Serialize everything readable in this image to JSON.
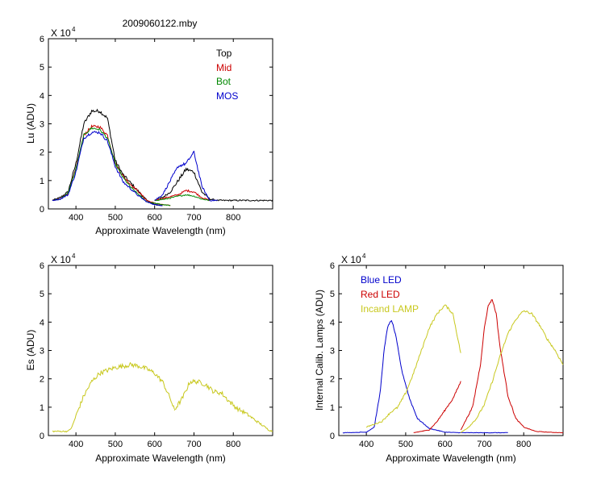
{
  "figure_title": "2009060122.mby",
  "chart_data": [
    {
      "type": "line",
      "xlabel": "Approximate Wavelength (nm)",
      "ylabel": "Lu (ADU)",
      "multiplier_label": "X 10",
      "multiplier_exp": "4",
      "xlim": [
        330,
        900
      ],
      "ylim": [
        0,
        6
      ],
      "xticks": [
        400,
        500,
        600,
        700,
        800
      ],
      "yticks": [
        0,
        1,
        2,
        3,
        4,
        5,
        6
      ],
      "legend_position": "top-right",
      "series": [
        {
          "name": "Top",
          "color": "#000000",
          "noise": 0.06,
          "segments": [
            {
              "x": [
                340,
                360,
                380,
                400,
                420,
                440,
                460,
                480,
                500,
                520,
                540,
                560,
                580,
                600,
                620
              ],
              "y": [
                0.3,
                0.4,
                0.6,
                1.6,
                3.0,
                3.45,
                3.45,
                3.2,
                1.7,
                1.2,
                0.9,
                0.6,
                0.3,
                0.15,
                0.12
              ]
            },
            {
              "x": [
                600,
                620,
                640,
                660,
                680,
                700,
                720,
                740,
                760,
                800,
                850,
                900
              ],
              "y": [
                0.3,
                0.4,
                0.6,
                1.0,
                1.4,
                1.3,
                0.6,
                0.35,
                0.3,
                0.3,
                0.3,
                0.3
              ]
            }
          ]
        },
        {
          "name": "Mid",
          "color": "#cc0000",
          "noise": 0.05,
          "segments": [
            {
              "x": [
                340,
                360,
                380,
                400,
                420,
                440,
                460,
                480,
                500,
                520,
                540,
                560,
                580,
                600,
                620,
                640
              ],
              "y": [
                0.3,
                0.35,
                0.55,
                1.4,
                2.6,
                2.9,
                2.9,
                2.6,
                1.6,
                1.15,
                0.85,
                0.6,
                0.3,
                0.2,
                0.15,
                0.12
              ]
            },
            {
              "x": [
                600,
                630,
                660,
                680,
                700,
                720,
                740
              ],
              "y": [
                0.3,
                0.4,
                0.5,
                0.65,
                0.6,
                0.4,
                0.3
              ]
            }
          ]
        },
        {
          "name": "Bot",
          "color": "#008800",
          "noise": 0.04,
          "segments": [
            {
              "x": [
                340,
                360,
                380,
                400,
                420,
                440,
                460,
                480,
                500,
                520,
                540,
                560,
                580,
                600,
                620,
                640
              ],
              "y": [
                0.3,
                0.35,
                0.55,
                1.4,
                2.6,
                2.85,
                2.8,
                2.5,
                1.6,
                1.1,
                0.75,
                0.5,
                0.25,
                0.2,
                0.15,
                0.12
              ]
            },
            {
              "x": [
                600,
                630,
                660,
                680,
                700,
                720,
                740
              ],
              "y": [
                0.3,
                0.35,
                0.45,
                0.5,
                0.45,
                0.35,
                0.3
              ]
            }
          ]
        },
        {
          "name": "MOS",
          "color": "#0000cc",
          "noise": 0.05,
          "segments": [
            {
              "x": [
                340,
                360,
                380,
                400,
                420,
                440,
                460,
                480,
                500,
                520,
                540,
                560,
                580,
                600,
                620
              ],
              "y": [
                0.3,
                0.35,
                0.5,
                1.3,
                2.5,
                2.7,
                2.7,
                2.4,
                1.5,
                0.95,
                0.7,
                0.45,
                0.25,
                0.15,
                0.12
              ]
            },
            {
              "x": [
                600,
                620,
                640,
                660,
                680,
                700,
                710,
                720,
                740,
                760
              ],
              "y": [
                0.3,
                0.5,
                1.0,
                1.5,
                1.6,
                2.0,
                1.4,
                0.8,
                0.3,
                0.3
              ]
            }
          ]
        }
      ]
    },
    {
      "type": "line",
      "xlabel": "Approximate Wavelength (nm)",
      "ylabel": "Es (ADU)",
      "multiplier_label": "X 10",
      "multiplier_exp": "4",
      "xlim": [
        330,
        900
      ],
      "ylim": [
        0,
        6
      ],
      "xticks": [
        400,
        500,
        600,
        700,
        800
      ],
      "yticks": [
        0,
        1,
        2,
        3,
        4,
        5,
        6
      ],
      "series": [
        {
          "name": "",
          "color": "#c8c81e",
          "noise": 0.08,
          "segments": [
            {
              "x": [
                340,
                380,
                390,
                400,
                420,
                440,
                460,
                480,
                500,
                520,
                540,
                560,
                580,
                600,
                620,
                640,
                650
              ],
              "y": [
                0.15,
                0.15,
                0.3,
                0.7,
                1.4,
                1.9,
                2.2,
                2.3,
                2.4,
                2.45,
                2.5,
                2.45,
                2.35,
                2.2,
                1.9,
                1.3,
                0.9
              ]
            },
            {
              "x": [
                650,
                670,
                690,
                710,
                730,
                750,
                770,
                790,
                810,
                830,
                850,
                870,
                890,
                900
              ],
              "y": [
                0.9,
                1.3,
                1.9,
                1.9,
                1.8,
                1.55,
                1.5,
                1.2,
                0.95,
                0.8,
                0.6,
                0.4,
                0.2,
                0.15
              ]
            }
          ]
        }
      ]
    },
    {
      "type": "line",
      "xlabel": "Approximate Wavelength (nm)",
      "ylabel": "Internal Calib. Lamps (ADU)",
      "multiplier_label": "X 10",
      "multiplier_exp": "4",
      "xlim": [
        330,
        900
      ],
      "ylim": [
        0,
        6
      ],
      "xticks": [
        400,
        500,
        600,
        700,
        800
      ],
      "yticks": [
        0,
        1,
        2,
        3,
        4,
        5,
        6
      ],
      "legend_position": "top-left",
      "series": [
        {
          "name": "Blue LED",
          "color": "#0000cc",
          "noise": 0.03,
          "segments": [
            {
              "x": [
                340,
                400,
                420,
                435,
                445,
                455,
                465,
                475,
                490,
                510,
                530,
                560,
                600,
                640,
                680,
                720,
                760
              ],
              "y": [
                0.1,
                0.12,
                0.3,
                1.5,
                3.0,
                3.9,
                4.05,
                3.5,
                2.3,
                1.3,
                0.6,
                0.25,
                0.12,
                0.1,
                0.1,
                0.1,
                0.1
              ]
            }
          ]
        },
        {
          "name": "Red LED",
          "color": "#cc0000",
          "noise": 0.03,
          "segments": [
            {
              "x": [
                520,
                560,
                580,
                600,
                620,
                640
              ],
              "y": [
                0.1,
                0.2,
                0.5,
                0.9,
                1.3,
                1.9
              ]
            },
            {
              "x": [
                640,
                670,
                690,
                700,
                710,
                720,
                730,
                740,
                760,
                780,
                800,
                830,
                860,
                900
              ],
              "y": [
                0.2,
                1.0,
                2.5,
                3.8,
                4.6,
                4.8,
                4.3,
                3.1,
                1.4,
                0.6,
                0.3,
                0.15,
                0.12,
                0.1
              ]
            }
          ]
        },
        {
          "name": "Incand LAMP",
          "color": "#c8c81e",
          "noise": 0.04,
          "segments": [
            {
              "x": [
                400,
                440,
                460,
                480,
                500,
                520,
                540,
                560,
                580,
                600,
                620,
                640
              ],
              "y": [
                0.3,
                0.5,
                0.8,
                1.0,
                1.5,
                2.2,
                3.0,
                3.8,
                4.3,
                4.6,
                4.3,
                2.9
              ]
            },
            {
              "x": [
                640,
                660,
                680,
                700,
                720,
                740,
                760,
                780,
                800,
                820,
                840,
                860,
                880,
                900
              ],
              "y": [
                0.1,
                0.3,
                0.6,
                1.1,
                1.9,
                2.8,
                3.6,
                4.1,
                4.4,
                4.3,
                3.9,
                3.4,
                3.0,
                2.5
              ]
            }
          ]
        }
      ]
    }
  ]
}
